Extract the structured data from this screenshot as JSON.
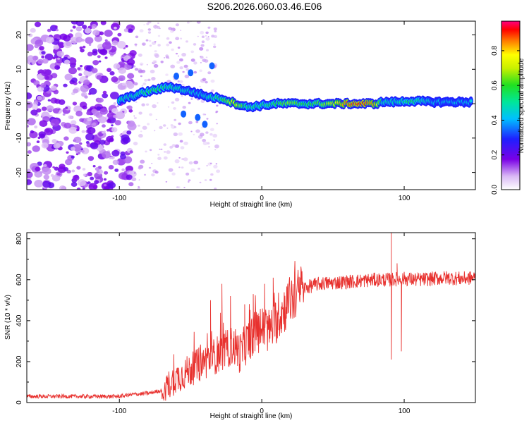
{
  "title": "S206.2026.060.03.46.E06",
  "chart_data": [
    {
      "type": "heatmap",
      "xlabel": "Height of straight line (km)",
      "ylabel": "Frequency (Hz)",
      "xlim": [
        -165,
        150
      ],
      "ylim": [
        -25,
        24
      ],
      "x_ticks": [
        "-100",
        "0",
        "100"
      ],
      "y_ticks": [
        "20",
        "10",
        "0",
        "-10",
        "-20"
      ],
      "colorbar": {
        "label": "Normalized spectral amplitude",
        "range": [
          0,
          0.97
        ],
        "ticks": [
          "0.0",
          "0.2",
          "0.4",
          "0.6",
          "0.8"
        ]
      },
      "ridge": [
        {
          "x": -100,
          "y": 1,
          "amp": 0.55
        },
        {
          "x": -92,
          "y": 2,
          "amp": 0.5
        },
        {
          "x": -85,
          "y": 3,
          "amp": 0.55
        },
        {
          "x": -75,
          "y": 4,
          "amp": 0.6
        },
        {
          "x": -65,
          "y": 5,
          "amp": 0.55
        },
        {
          "x": -55,
          "y": 4,
          "amp": 0.5
        },
        {
          "x": -45,
          "y": 3,
          "amp": 0.45
        },
        {
          "x": -38,
          "y": 2,
          "amp": 0.5
        },
        {
          "x": -28,
          "y": 1.5,
          "amp": 0.6
        },
        {
          "x": -18,
          "y": 0,
          "amp": 0.8
        },
        {
          "x": -10,
          "y": -1,
          "amp": 0.55
        },
        {
          "x": 0,
          "y": -0.5,
          "amp": 0.55
        },
        {
          "x": 10,
          "y": 0,
          "amp": 0.6
        },
        {
          "x": 20,
          "y": 0,
          "amp": 0.7
        },
        {
          "x": 30,
          "y": 0,
          "amp": 0.6
        },
        {
          "x": 40,
          "y": 0,
          "amp": 0.65
        },
        {
          "x": 50,
          "y": 0,
          "amp": 0.75
        },
        {
          "x": 60,
          "y": 0,
          "amp": 0.9
        },
        {
          "x": 70,
          "y": 0,
          "amp": 0.95
        },
        {
          "x": 80,
          "y": 0,
          "amp": 0.85
        },
        {
          "x": 85,
          "y": 0.5,
          "amp": 0.5
        },
        {
          "x": 95,
          "y": 0.5,
          "amp": 0.5
        },
        {
          "x": 105,
          "y": 0.8,
          "amp": 0.6
        },
        {
          "x": 120,
          "y": 0.5,
          "amp": 0.45
        },
        {
          "x": 135,
          "y": 0.5,
          "amp": 0.45
        },
        {
          "x": 148,
          "y": 0.5,
          "amp": 0.45
        }
      ]
    },
    {
      "type": "line",
      "xlabel": "Height of straight line (km)",
      "ylabel": "SNR (10 * v/v)",
      "xlim": [
        -165,
        150
      ],
      "ylim": [
        0,
        830
      ],
      "x_ticks": [
        "-100",
        "0",
        "100"
      ],
      "y_ticks": [
        "800",
        "600",
        "400",
        "200",
        "0"
      ],
      "color": "#e8312e",
      "series": [
        {
          "name": "SNR",
          "points": [
            [
              -165,
              30
            ],
            [
              -150,
              30
            ],
            [
              -130,
              30
            ],
            [
              -110,
              30
            ],
            [
              -100,
              30
            ],
            [
              -90,
              40
            ],
            [
              -80,
              45
            ],
            [
              -70,
              60
            ],
            [
              -60,
              120
            ],
            [
              -50,
              160
            ],
            [
              -40,
              200
            ],
            [
              -30,
              240
            ],
            [
              -25,
              260
            ],
            [
              -20,
              280
            ],
            [
              -15,
              240
            ],
            [
              -10,
              300
            ],
            [
              -5,
              340
            ],
            [
              0,
              360
            ],
            [
              5,
              350
            ],
            [
              10,
              400
            ],
            [
              15,
              450
            ],
            [
              20,
              500
            ],
            [
              25,
              530
            ],
            [
              30,
              560
            ],
            [
              40,
              580
            ],
            [
              50,
              585
            ],
            [
              60,
              590
            ],
            [
              70,
              595
            ],
            [
              80,
              600
            ],
            [
              90,
              600
            ],
            [
              100,
              605
            ],
            [
              110,
              600
            ],
            [
              120,
              605
            ],
            [
              130,
              610
            ],
            [
              140,
              605
            ],
            [
              150,
              610
            ]
          ],
          "spikes": [
            [
              -36,
              500
            ],
            [
              -28,
              580
            ],
            [
              -22,
              520
            ],
            [
              -12,
              480
            ],
            [
              -6,
              530
            ],
            [
              2,
              580
            ],
            [
              8,
              610
            ],
            [
              18,
              560
            ],
            [
              91,
              840
            ],
            [
              91,
              210
            ],
            [
              95,
              680
            ],
            [
              98,
              250
            ]
          ]
        }
      ]
    }
  ]
}
